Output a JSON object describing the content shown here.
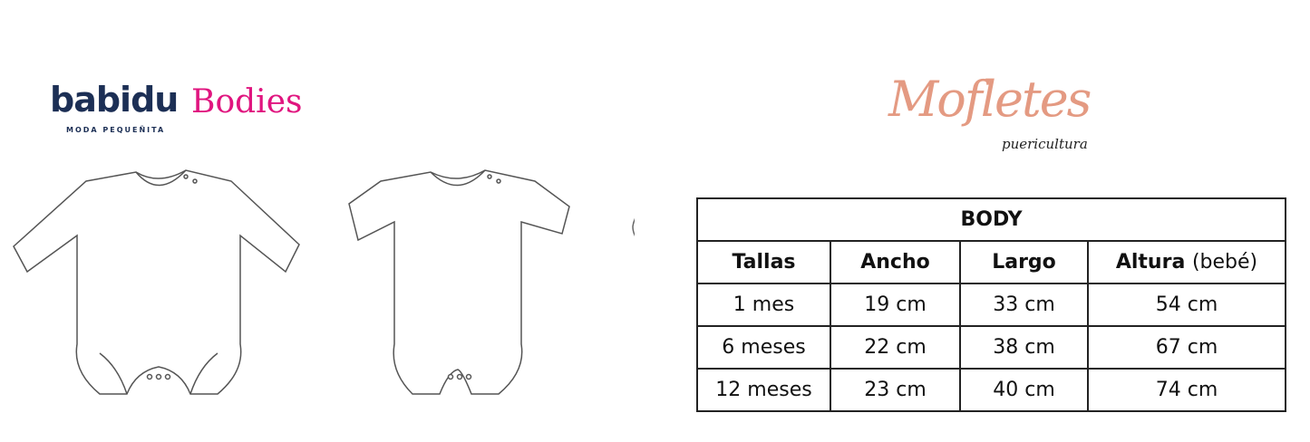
{
  "brand": {
    "name": "babidu",
    "tagline": "MODA PEQUEÑITA",
    "product": "Bodies"
  },
  "partner": {
    "name": "Mofletes",
    "subtitle": "puericultura"
  },
  "icons": [
    "long-sleeve-bodysuit-icon",
    "short-sleeve-bodysuit-icon",
    "drop-icon"
  ],
  "colors": {
    "brand_navy": "#1c2f55",
    "brand_pink": "#e0157f",
    "partner_peach": "#e49a82"
  },
  "table": {
    "title": "BODY",
    "headers": [
      "Tallas",
      "Ancho",
      "Largo",
      "Altura"
    ],
    "header_suffix": "(bebé)",
    "rows": [
      [
        "1 mes",
        "19 cm",
        "33 cm",
        "54 cm"
      ],
      [
        "6 meses",
        "22 cm",
        "38 cm",
        "67 cm"
      ],
      [
        "12 meses",
        "23 cm",
        "40 cm",
        "74 cm"
      ]
    ]
  }
}
